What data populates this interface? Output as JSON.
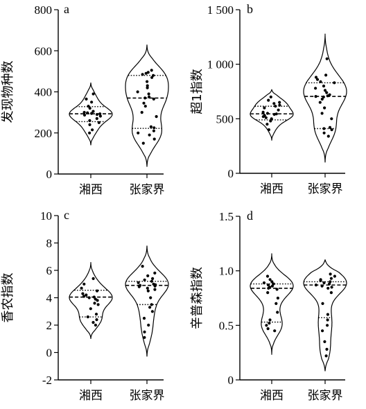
{
  "chart_data": [
    {
      "type": "violin",
      "panel_label": "a",
      "ylabel": "发现物种数",
      "ylim": [
        0,
        800
      ],
      "yticks": [
        "0",
        "200",
        "400",
        "600",
        "800"
      ],
      "ytick_values": [
        0,
        200,
        400,
        600,
        800
      ],
      "categories": [
        "湘西",
        "张家界"
      ],
      "series": [
        {
          "category": "湘西",
          "min": 140,
          "max": 445,
          "q1": 255,
          "median": 293,
          "q3": 328,
          "points": [
            390,
            365,
            350,
            330,
            320,
            305,
            300,
            298,
            295,
            293,
            290,
            287,
            282,
            270,
            260,
            250,
            240,
            215,
            200
          ]
        },
        {
          "category": "张家界",
          "min": 35,
          "max": 630,
          "q1": 222,
          "median": 370,
          "q3": 480,
          "points": [
            505,
            495,
            490,
            485,
            480,
            470,
            450,
            430,
            420,
            400,
            390,
            375,
            370,
            365,
            345,
            330,
            300,
            280,
            230,
            225,
            210,
            200,
            190,
            170,
            150
          ]
        }
      ]
    },
    {
      "type": "violin",
      "panel_label": "b",
      "ylabel": "超1指数",
      "ylim": [
        0,
        1500
      ],
      "yticks": [
        "0",
        "500",
        "1 000",
        "1 500"
      ],
      "ytick_values": [
        0,
        500,
        1000,
        1500
      ],
      "categories": [
        "湘西",
        "张家界"
      ],
      "series": [
        {
          "category": "湘西",
          "min": 300,
          "max": 770,
          "q1": 490,
          "median": 545,
          "q3": 615,
          "points": [
            700,
            670,
            650,
            640,
            625,
            615,
            600,
            580,
            560,
            550,
            545,
            540,
            530,
            520,
            510,
            500,
            480,
            450,
            400
          ]
        },
        {
          "category": "张家界",
          "min": 100,
          "max": 1280,
          "q1": 410,
          "median": 705,
          "q3": 830,
          "points": [
            1050,
            900,
            880,
            860,
            840,
            830,
            800,
            780,
            760,
            740,
            720,
            710,
            705,
            700,
            680,
            650,
            600,
            550,
            500,
            420,
            410,
            400,
            370,
            340
          ]
        }
      ]
    },
    {
      "type": "violin",
      "panel_label": "c",
      "ylabel": "香农指数",
      "ylim": [
        -2,
        10
      ],
      "yticks": [
        "-2",
        "0",
        "2",
        "4",
        "6",
        "8",
        "10"
      ],
      "ytick_values": [
        -2,
        0,
        2,
        4,
        6,
        8,
        10
      ],
      "categories": [
        "湘西",
        "张家界"
      ],
      "series": [
        {
          "category": "湘西",
          "min": 1.0,
          "max": 6.6,
          "q1": 2.6,
          "median": 4.05,
          "q3": 4.55,
          "points": [
            5.4,
            5.0,
            4.7,
            4.5,
            4.3,
            4.2,
            4.1,
            4.05,
            4.0,
            3.9,
            3.8,
            3.6,
            3.5,
            3.2,
            2.8,
            2.6,
            2.4,
            2.2,
            2.0
          ]
        },
        {
          "category": "张家界",
          "min": -0.3,
          "max": 7.8,
          "q1": 3.5,
          "median": 4.9,
          "q3": 5.2,
          "points": [
            6.3,
            5.8,
            5.6,
            5.4,
            5.3,
            5.2,
            5.1,
            5.0,
            4.95,
            4.9,
            4.85,
            4.8,
            4.7,
            4.6,
            4.5,
            4.0,
            3.5,
            3.3,
            3.0,
            2.5,
            2.0,
            1.5,
            1.1
          ]
        }
      ]
    },
    {
      "type": "violin",
      "panel_label": "d",
      "ylabel": "辛普森指数",
      "ylim": [
        0,
        1.5
      ],
      "yticks": [
        "0",
        "0.5",
        "1.0",
        "1.5"
      ],
      "ytick_values": [
        0,
        0.5,
        1.0,
        1.5
      ],
      "categories": [
        "湘西",
        "张家界"
      ],
      "series": [
        {
          "category": "湘西",
          "min": 0.23,
          "max": 1.16,
          "q1": 0.53,
          "median": 0.84,
          "q3": 0.88,
          "points": [
            0.95,
            0.92,
            0.9,
            0.89,
            0.88,
            0.87,
            0.86,
            0.85,
            0.84,
            0.83,
            0.8,
            0.75,
            0.7,
            0.62,
            0.55,
            0.52,
            0.5,
            0.47,
            0.45
          ]
        },
        {
          "category": "张家界",
          "min": 0.08,
          "max": 1.1,
          "q1": 0.57,
          "median": 0.87,
          "q3": 0.9,
          "points": [
            0.97,
            0.95,
            0.93,
            0.92,
            0.91,
            0.9,
            0.89,
            0.88,
            0.87,
            0.86,
            0.85,
            0.84,
            0.8,
            0.7,
            0.6,
            0.55,
            0.5,
            0.45,
            0.35,
            0.28,
            0.22
          ]
        }
      ]
    }
  ]
}
